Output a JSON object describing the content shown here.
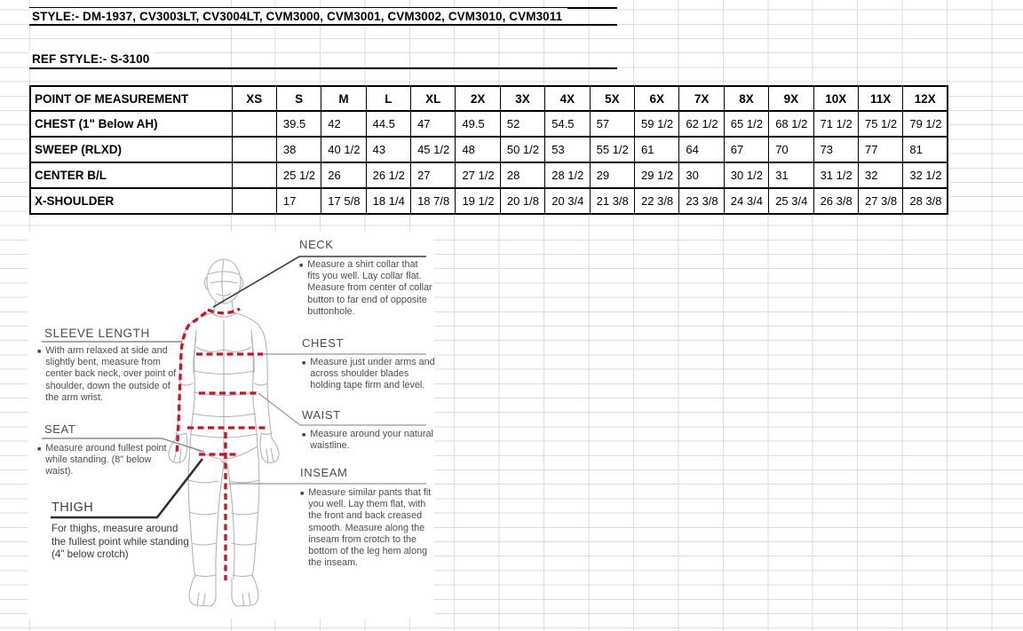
{
  "document": {
    "style_line": "STYLE:- DM-1937, CV3003LT, CV3004LT, CVM3000, CVM3001, CVM3002, CVM3010, CVM3011",
    "ref_style_line": "REF STYLE:- S-3100"
  },
  "size_table": {
    "header": [
      "POINT OF MEASUREMENT",
      "XS",
      "S",
      "M",
      "L",
      "XL",
      "2X",
      "3X",
      "4X",
      "5X",
      "6X",
      "7X",
      "8X",
      "9X",
      "10X",
      "11X",
      "12X"
    ],
    "rows": [
      {
        "label": "CHEST (1\" Below AH)",
        "values": [
          "",
          "39.5",
          "42",
          "44.5",
          "47",
          "49.5",
          "52",
          "54.5",
          "57",
          "59 1/2",
          "62 1/2",
          "65 1/2",
          "68 1/2",
          "71 1/2",
          "75 1/2",
          "79 1/2"
        ]
      },
      {
        "label": "SWEEP (RLXD)",
        "values": [
          "",
          "38",
          "40 1/2",
          "43",
          "45 1/2",
          "48",
          "50 1/2",
          "53",
          "55 1/2",
          "61",
          "64",
          "67",
          "70",
          "73",
          "77",
          "81"
        ]
      },
      {
        "label": "CENTER B/L",
        "values": [
          "",
          "25 1/2",
          "26",
          "26 1/2",
          "27",
          "27 1/2",
          "28",
          "28 1/2",
          "29",
          "29 1/2",
          "30",
          "30 1/2",
          "31",
          "31 1/2",
          "32",
          "32 1/2"
        ]
      },
      {
        "label": "X-SHOULDER",
        "values": [
          "",
          "17",
          "17 5/8",
          "18 1/4",
          "18 7/8",
          "19 1/2",
          "20 1/8",
          "20 3/4",
          "21 3/8",
          "22 3/8",
          "23 3/8",
          "24 3/4",
          "25 3/4",
          "26 3/8",
          "27 3/8",
          "28 3/8"
        ]
      }
    ]
  },
  "measurement_guide": {
    "right_sections": [
      {
        "title": "NECK",
        "text": "Measure a shirt collar that fits you well. Lay collar flat. Measure from center of collar button to far end of opposite buttonhole."
      },
      {
        "title": "CHEST",
        "text": "Measure just under arms and across shoulder blades holding tape firm and level."
      },
      {
        "title": "WAIST",
        "text": "Measure around your natural waistline."
      },
      {
        "title": "INSEAM",
        "text": "Measure similar pants that fit you well. Lay them flat, with the front and back creased smooth. Measure along the inseam from crotch to the bottom of the leg hem along the inseam."
      }
    ],
    "left_sections": [
      {
        "title": "SLEEVE LENGTH",
        "text": "With arm relaxed at side and slightly bent, measure from center back neck, over point of shoulder, down the outside of the arm wrist."
      },
      {
        "title": "SEAT",
        "text": "Measure around fullest point while standing. (8\" below waist)."
      },
      {
        "title": "THIGH",
        "text": "For thighs, measure around the fullest point while standing (4\" below crotch)"
      }
    ]
  },
  "colors": {
    "accent_red": "#cf1126",
    "gridline": "#dcdcdc",
    "table_border": "#000000"
  }
}
